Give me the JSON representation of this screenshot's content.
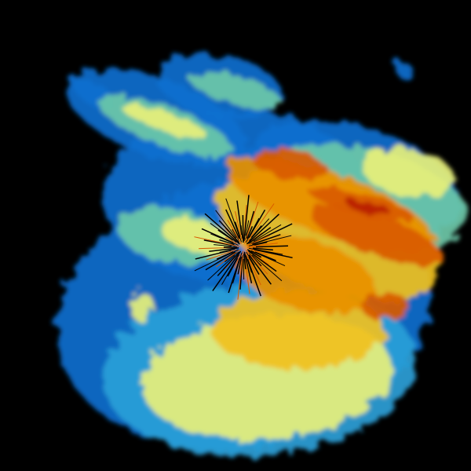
{
  "image": {
    "kind": "radar-reflectivity-sweep",
    "background_color": "#000000",
    "palette": {
      "light": "#0a6fcf",
      "weak": "#2aa0d8",
      "moderate_low": "#6cc8a8",
      "moderate": "#e8f07a",
      "moderate_high": "#f0c020",
      "strong": "#e89000",
      "heavy": "#d85a00",
      "intense": "#b82000"
    }
  }
}
